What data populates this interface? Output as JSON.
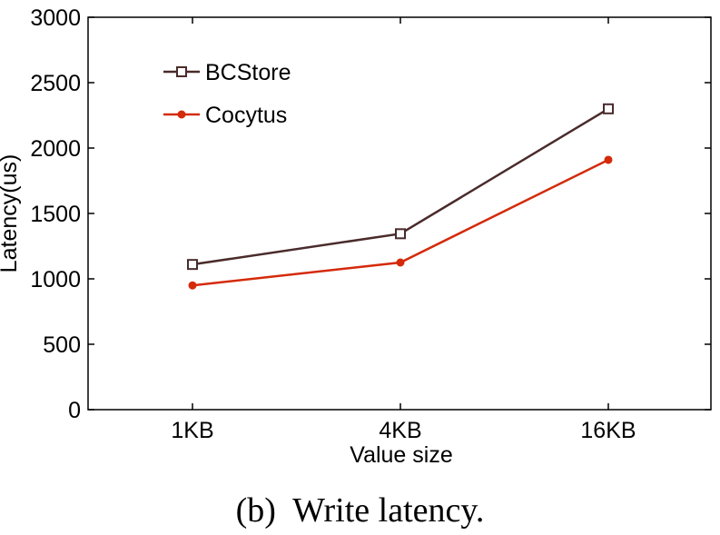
{
  "caption": "(b)  Write latency.",
  "chart_data": {
    "type": "line",
    "categories": [
      "1KB",
      "4KB",
      "16KB"
    ],
    "xlabel": "Value size",
    "ylabel": "Latency(us)",
    "ylim": [
      0,
      3000
    ],
    "yticks": [
      0,
      500,
      1000,
      1500,
      2000,
      2500,
      3000
    ],
    "grid": false,
    "legend_position": "top-left",
    "series": [
      {
        "name": "BCStore",
        "values": [
          1110,
          1345,
          2300
        ],
        "color": "#4a2b2b",
        "marker": "open-square"
      },
      {
        "name": "Cocytus",
        "values": [
          950,
          1125,
          1910
        ],
        "color": "#d42a0a",
        "marker": "filled-circle"
      }
    ]
  }
}
